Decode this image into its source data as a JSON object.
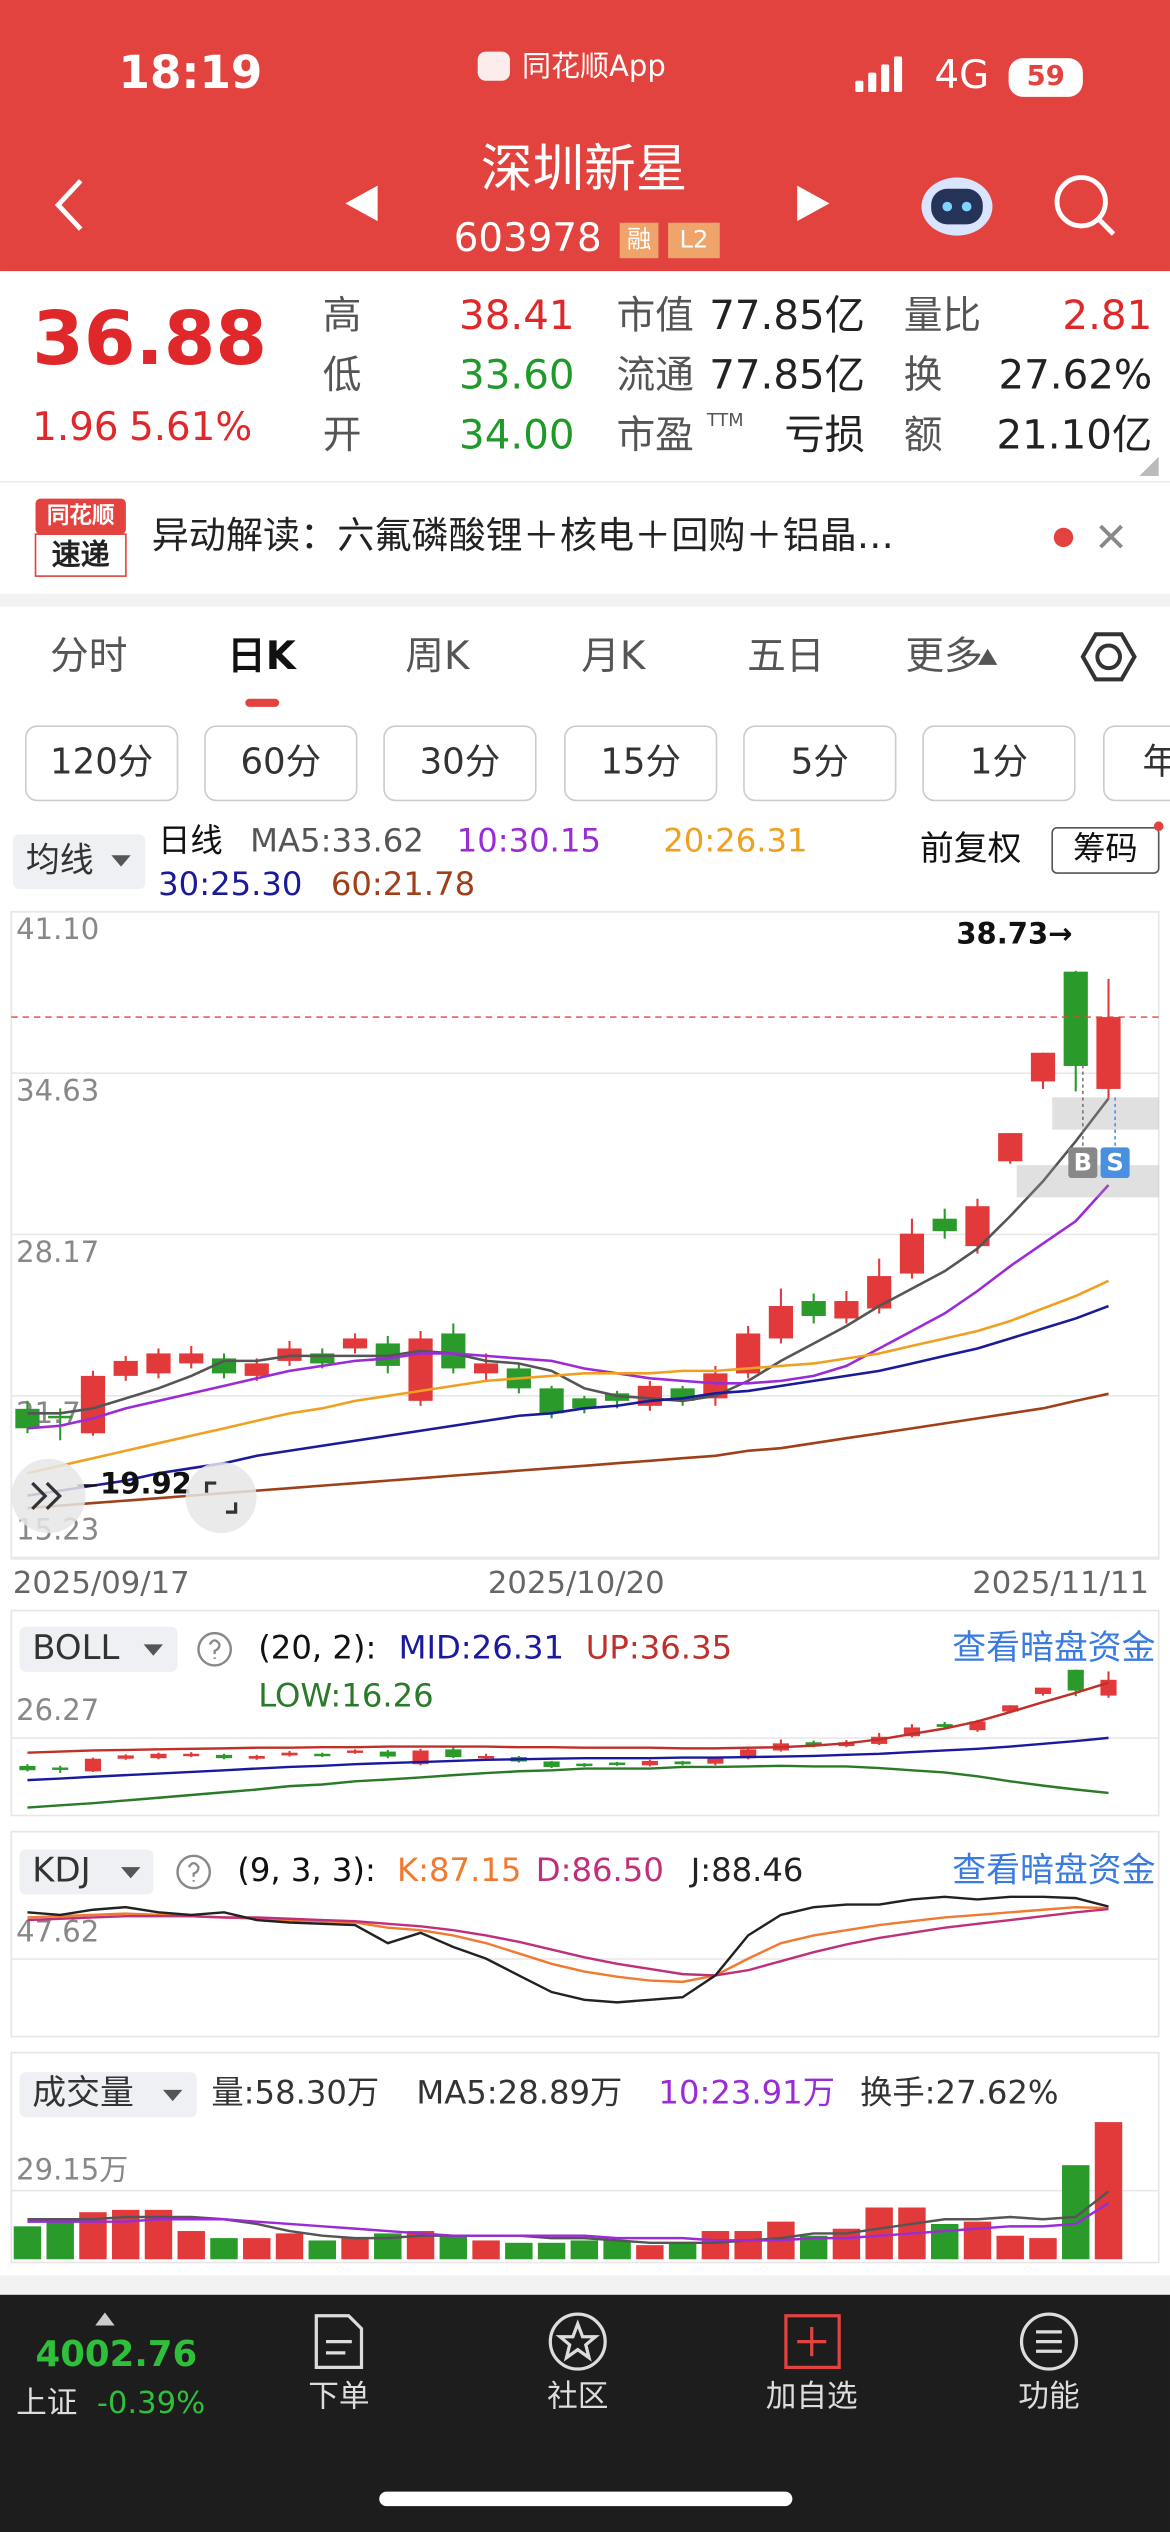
{
  "status": {
    "time": "18:19",
    "app": "同花顺App",
    "network": "4G",
    "battery": "59"
  },
  "header": {
    "title": "深圳新星",
    "code": "603978",
    "badges": [
      "融",
      "L2"
    ]
  },
  "quote": {
    "price": "36.88",
    "change": "1.96",
    "change_pct": "5.61%",
    "color": "#e0282a",
    "stats": [
      [
        {
          "label": "高",
          "value": "38.41",
          "color": "#e0282a"
        },
        {
          "label": "低",
          "value": "33.60",
          "color": "#1f9a2a"
        },
        {
          "label": "开",
          "value": "34.00",
          "color": "#1f9a2a"
        }
      ],
      [
        {
          "label": "市值",
          "value": "77.85亿",
          "color": "#222222"
        },
        {
          "label": "流通",
          "value": "77.85亿",
          "color": "#222222"
        },
        {
          "label": "市盈",
          "sup": "TTM",
          "value": "亏损",
          "color": "#222222"
        }
      ],
      [
        {
          "label": "量比",
          "value": "2.81",
          "color": "#e0282a"
        },
        {
          "label": "换",
          "value": "27.62%",
          "color": "#222222"
        },
        {
          "label": "额",
          "value": "21.10亿",
          "color": "#222222"
        }
      ]
    ]
  },
  "news": {
    "badge": [
      "同花顺",
      "速递"
    ],
    "text": "异动解读：六氟磷酸锂＋核电＋回购＋铝晶…"
  },
  "tabs": {
    "items": [
      "分时",
      "日K",
      "周K",
      "月K",
      "五日",
      "更多"
    ],
    "active": 1
  },
  "periods": [
    "120分",
    "60分",
    "30分",
    "15分",
    "5分",
    "1分",
    "年"
  ],
  "kline_header": {
    "indicator": "均线",
    "period": "日线",
    "adjust": "前复权",
    "chips": "筹码",
    "markers": [
      "B",
      "S"
    ]
  },
  "chart_data": [
    {
      "type": "candlestick",
      "grid": true,
      "categories": [
        "2025/09/17",
        null,
        null,
        null,
        null,
        null,
        null,
        null,
        null,
        null,
        null,
        null,
        null,
        null,
        null,
        null,
        null,
        "2025/10/20",
        null,
        null,
        null,
        null,
        null,
        null,
        null,
        null,
        null,
        null,
        null,
        null,
        null,
        null,
        null,
        "2025/11/11"
      ],
      "open": [
        21.18,
        20.9,
        20.2,
        22.5,
        22.6,
        23.0,
        23.2,
        22.5,
        23.1,
        23.4,
        23.6,
        23.8,
        21.5,
        24.2,
        22.6,
        22.8,
        22.0,
        21.6,
        21.8,
        21.3,
        22.0,
        21.6,
        22.6,
        24.0,
        25.5,
        24.8,
        25.2,
        26.6,
        28.8,
        27.7,
        31.1,
        34.3,
        38.7,
        34.0
      ],
      "high": [
        21.5,
        21.2,
        22.7,
        23.3,
        23.6,
        23.7,
        23.4,
        23.2,
        23.9,
        23.6,
        24.2,
        24.1,
        24.3,
        24.6,
        23.4,
        23.0,
        22.1,
        21.7,
        21.9,
        22.3,
        22.1,
        22.9,
        24.5,
        26.0,
        25.8,
        25.9,
        27.2,
        28.8,
        29.2,
        29.6,
        32.23,
        35.45,
        38.73,
        38.41
      ],
      "low": [
        20.2,
        19.92,
        20.1,
        22.3,
        22.4,
        22.8,
        22.4,
        22.3,
        22.9,
        22.8,
        23.4,
        22.6,
        21.3,
        22.6,
        22.3,
        21.8,
        20.8,
        21.0,
        21.2,
        21.1,
        21.3,
        21.3,
        22.4,
        23.8,
        24.6,
        24.6,
        25.0,
        26.4,
        28.0,
        27.4,
        31.0,
        34.0,
        33.9,
        33.6
      ],
      "close": [
        20.4,
        20.8,
        22.5,
        23.1,
        23.4,
        23.4,
        22.6,
        23.0,
        23.6,
        23.0,
        24.0,
        22.9,
        24.0,
        22.8,
        23.0,
        22.0,
        21.0,
        21.2,
        21.5,
        22.1,
        21.5,
        22.6,
        24.2,
        25.3,
        24.9,
        25.5,
        26.5,
        28.2,
        28.3,
        29.3,
        32.23,
        35.45,
        34.92,
        36.88
      ],
      "up_color": "#e23a3a",
      "down_color": "#2a9a2a",
      "ylim": [
        15.23,
        41.1
      ],
      "yticks": [
        {
          "value": 41.1,
          "label": "41.10"
        },
        34.63,
        28.17,
        {
          "value": 21.7,
          "label": "21.70"
        },
        15.23
      ],
      "series": [
        {
          "name": "MA5:33.62",
          "color": "#555555",
          "values": [
            21.0,
            21.0,
            21.2,
            21.6,
            22.0,
            22.5,
            23.1,
            23.1,
            23.3,
            23.3,
            23.3,
            23.3,
            23.5,
            23.4,
            23.1,
            23.0,
            22.7,
            22.0,
            21.7,
            21.6,
            21.5,
            21.7,
            22.3,
            23.1,
            23.8,
            24.5,
            25.3,
            26.0,
            26.7,
            27.6,
            28.9,
            30.3,
            31.9,
            33.62
          ]
        },
        {
          "name": "10:30.15",
          "color": "#9b2bd6",
          "values": [
            20.4,
            20.5,
            20.8,
            21.2,
            21.5,
            21.8,
            22.1,
            22.4,
            22.7,
            22.9,
            23.1,
            23.2,
            23.4,
            23.4,
            23.3,
            23.2,
            23.1,
            22.8,
            22.6,
            22.4,
            22.3,
            22.2,
            22.2,
            22.3,
            22.5,
            22.9,
            23.6,
            24.3,
            25.0,
            25.9,
            26.9,
            27.8,
            28.7,
            30.15
          ]
        },
        {
          "name": "20:26.31",
          "color": "#f0a020",
          "values": [
            18.6,
            18.9,
            19.2,
            19.5,
            19.8,
            20.1,
            20.4,
            20.7,
            21.0,
            21.2,
            21.5,
            21.7,
            21.9,
            22.1,
            22.3,
            22.4,
            22.5,
            22.6,
            22.6,
            22.6,
            22.7,
            22.7,
            22.8,
            22.9,
            23.0,
            23.2,
            23.4,
            23.7,
            24.0,
            24.3,
            24.7,
            25.2,
            25.7,
            26.31
          ]
        },
        {
          "name": "30:25.30",
          "color": "#1a1a9a",
          "values": [
            17.7,
            17.9,
            18.1,
            18.3,
            18.6,
            18.8,
            19.0,
            19.3,
            19.5,
            19.7,
            19.9,
            20.1,
            20.3,
            20.5,
            20.7,
            20.9,
            21.0,
            21.2,
            21.3,
            21.5,
            21.6,
            21.8,
            21.9,
            22.1,
            22.3,
            22.5,
            22.7,
            23.0,
            23.3,
            23.6,
            24.0,
            24.4,
            24.8,
            25.3
          ]
        },
        {
          "name": "60:21.78",
          "color": "#a0401a",
          "values": [
            17.2,
            17.3,
            17.4,
            17.5,
            17.6,
            17.7,
            17.8,
            17.9,
            18.0,
            18.1,
            18.2,
            18.3,
            18.4,
            18.5,
            18.6,
            18.7,
            18.8,
            18.9,
            19.0,
            19.1,
            19.2,
            19.3,
            19.5,
            19.6,
            19.8,
            20.0,
            20.2,
            20.4,
            20.6,
            20.8,
            21.0,
            21.2,
            21.5,
            21.78
          ]
        }
      ],
      "annotations": [
        {
          "value": 38.73,
          "label": "38.73→"
        },
        {
          "value": 19.92,
          "label": "19.92"
        }
      ]
    },
    {
      "type": "line",
      "title": "BOLL",
      "params": "(20, 2):",
      "link": "查看暗盘资金",
      "ylim": [
        13.04,
        39.5
      ],
      "yticks": [
        26.27
      ],
      "series": [
        {
          "name": "MID:26.31",
          "color": "#1a1aa0",
          "values": [
            18.6,
            18.9,
            19.2,
            19.5,
            19.8,
            20.1,
            20.4,
            20.7,
            21.0,
            21.2,
            21.5,
            21.7,
            21.9,
            22.1,
            22.3,
            22.4,
            22.5,
            22.6,
            22.6,
            22.6,
            22.7,
            22.7,
            22.8,
            22.9,
            23.0,
            23.2,
            23.4,
            23.7,
            24.0,
            24.3,
            24.7,
            25.2,
            25.7,
            26.31
          ]
        },
        {
          "name": "UP:36.35",
          "color": "#c0302a",
          "values": [
            23.6,
            23.8,
            24.0,
            24.1,
            24.2,
            24.3,
            24.4,
            24.5,
            24.5,
            24.6,
            24.6,
            24.7,
            24.7,
            24.7,
            24.7,
            24.6,
            24.6,
            24.5,
            24.5,
            24.5,
            24.4,
            24.4,
            24.5,
            24.6,
            24.9,
            25.3,
            26.0,
            27.0,
            28.0,
            29.3,
            31.0,
            32.8,
            34.5,
            36.35
          ]
        },
        {
          "name": "LOW:16.26",
          "color": "#2a7a2a",
          "values": [
            13.6,
            14.0,
            14.4,
            14.9,
            15.4,
            15.9,
            16.4,
            16.9,
            17.5,
            17.8,
            18.4,
            18.7,
            19.1,
            19.5,
            19.9,
            20.2,
            20.4,
            20.7,
            20.7,
            20.7,
            21.0,
            21.0,
            21.1,
            21.2,
            21.1,
            21.1,
            20.8,
            20.4,
            20.0,
            19.3,
            18.4,
            17.6,
            16.9,
            16.26
          ]
        }
      ]
    },
    {
      "type": "line",
      "title": "KDJ",
      "params": "(9, 3, 3):",
      "link": "查看暗盘资金",
      "ylim": [
        -5,
        100.24
      ],
      "yticks": [
        47.62
      ],
      "series": [
        {
          "name": "K:87.15",
          "color": "#f07a30",
          "values": [
            80,
            81,
            82,
            83,
            82,
            81,
            80,
            79,
            78,
            77,
            76,
            72,
            70,
            66,
            60,
            52,
            44,
            38,
            34,
            31,
            30,
            35,
            48,
            60,
            66,
            70,
            74,
            77,
            80,
            82,
            84,
            86,
            88,
            87.15
          ]
        },
        {
          "name": "D:86.50",
          "color": "#c0307a",
          "values": [
            78,
            79,
            80,
            81,
            81,
            81,
            80,
            80,
            79,
            78,
            77,
            75,
            73,
            70,
            66,
            61,
            55,
            49,
            44,
            40,
            36,
            35,
            39,
            46,
            53,
            59,
            64,
            68,
            72,
            75,
            78,
            81,
            84,
            86.5
          ]
        },
        {
          "name": "J:88.46",
          "color": "#222222",
          "values": [
            84,
            82,
            86,
            88,
            84,
            82,
            84,
            78,
            76,
            75,
            74,
            60,
            68,
            57,
            48,
            35,
            22,
            16,
            14,
            16,
            18,
            35,
            66,
            82,
            88,
            90,
            90,
            94,
            96,
            94,
            96,
            96,
            95,
            88.46
          ]
        }
      ]
    },
    {
      "type": "bar",
      "title": "成交量",
      "name": "量:58.30万",
      "turnover": "换手:27.62%",
      "ylim": [
        0,
        58.3
      ],
      "yticks": [
        {
          "value": 29.15,
          "label": "29.15万"
        }
      ],
      "values": [
        14,
        16,
        20,
        21,
        21,
        12,
        9,
        9,
        11,
        8,
        9,
        11,
        12,
        10,
        8,
        7,
        7,
        8,
        8,
        6,
        7,
        12,
        12,
        16,
        10,
        13,
        22,
        22,
        15,
        16,
        10,
        9,
        40,
        58.3
      ],
      "series": [
        {
          "name": "MA5:28.89万",
          "color": "#555555",
          "values": [
            17,
            17,
            17,
            18,
            18,
            18,
            17,
            15,
            12,
            10,
            9,
            9,
            10,
            10,
            10,
            10,
            9,
            9,
            8,
            7,
            7,
            7,
            8,
            9,
            11,
            11,
            13,
            15,
            17,
            17,
            18,
            17,
            18,
            28.89
          ]
        },
        {
          "name": "10:23.91万",
          "color": "#9b2bd6",
          "values": [
            16,
            16,
            16,
            16,
            17,
            17,
            17,
            16,
            15,
            14,
            13,
            12,
            11,
            10,
            10,
            10,
            10,
            10,
            9,
            9,
            9,
            8,
            8,
            8,
            9,
            9,
            10,
            11,
            12,
            13,
            14,
            14,
            15,
            23.91
          ]
        }
      ]
    }
  ],
  "footer": {
    "index_value": "4002.76",
    "index_name": "上证",
    "index_change": "-0.39%",
    "nav": [
      "下单",
      "社区",
      "加自选",
      "功能"
    ]
  }
}
